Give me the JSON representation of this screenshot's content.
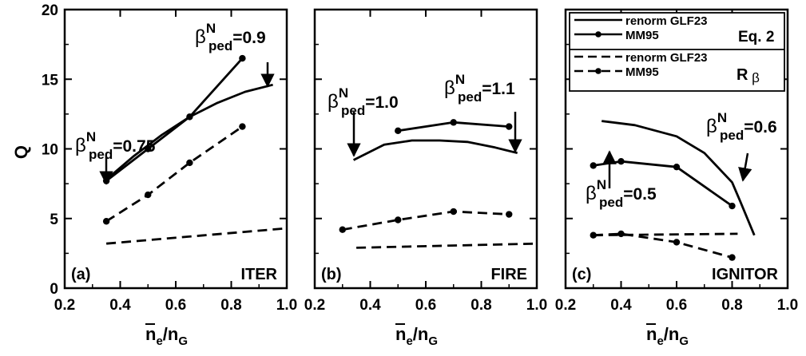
{
  "chart_data": [
    {
      "type": "line",
      "panel_label": "(a)",
      "device": "ITER",
      "xlabel": "n_e/n_G",
      "ylabel": "Q",
      "xlim": [
        0.2,
        1.0
      ],
      "ylim": [
        0,
        20
      ],
      "x_ticks": [
        "0.2",
        "0.4",
        "0.6",
        "0.8",
        "1.0"
      ],
      "y_ticks": [
        "0",
        "5",
        "10",
        "15",
        "20"
      ],
      "series": [
        {
          "name": "renorm GLF23",
          "method": "Eq. 2",
          "style": "solid",
          "markers": false,
          "x": [
            0.35,
            0.45,
            0.55,
            0.65,
            0.75,
            0.85,
            0.95
          ],
          "y": [
            7.8,
            9.5,
            11.0,
            12.3,
            13.3,
            14.1,
            14.6
          ]
        },
        {
          "name": "MM95",
          "method": "Eq. 2",
          "style": "solid",
          "markers": true,
          "x": [
            0.35,
            0.5,
            0.65,
            0.84
          ],
          "y": [
            7.7,
            10.0,
            12.3,
            16.5
          ]
        },
        {
          "name": "renorm GLF23",
          "method": "R",
          "style": "dashed",
          "markers": false,
          "x": [
            0.35,
            1.0
          ],
          "y": [
            3.2,
            4.3
          ]
        },
        {
          "name": "MM95",
          "method": "R",
          "style": "dashed",
          "markers": true,
          "x": [
            0.35,
            0.5,
            0.65,
            0.84
          ],
          "y": [
            4.8,
            6.7,
            9.0,
            11.6
          ]
        }
      ],
      "annotations": [
        {
          "base": "β",
          "sup": "N",
          "sub": "ped",
          "text": "=0.75",
          "arrow": "down"
        },
        {
          "base": "β",
          "sup": "N",
          "sub": "ped",
          "text": "=0.9",
          "arrow": "down"
        }
      ]
    },
    {
      "type": "line",
      "panel_label": "(b)",
      "device": "FIRE",
      "xlabel": "n_e/n_G",
      "xlim": [
        0.2,
        1.0
      ],
      "ylim": [
        0,
        20
      ],
      "x_ticks": [
        "0.2",
        "0.4",
        "0.6",
        "0.8",
        "1.0"
      ],
      "series": [
        {
          "name": "renorm GLF23",
          "method": "Eq. 2",
          "style": "solid",
          "markers": false,
          "x": [
            0.34,
            0.45,
            0.55,
            0.65,
            0.75,
            0.85,
            0.93
          ],
          "y": [
            9.2,
            10.3,
            10.6,
            10.6,
            10.5,
            10.1,
            9.7
          ]
        },
        {
          "name": "MM95",
          "method": "Eq. 2",
          "style": "solid",
          "markers": true,
          "x": [
            0.5,
            0.7,
            0.9
          ],
          "y": [
            11.3,
            11.9,
            11.6
          ]
        },
        {
          "name": "renorm GLF23",
          "method": "R",
          "style": "dashed",
          "markers": false,
          "x": [
            0.35,
            1.0
          ],
          "y": [
            2.9,
            3.2
          ]
        },
        {
          "name": "MM95",
          "method": "R",
          "style": "dashed",
          "markers": true,
          "x": [
            0.3,
            0.5,
            0.7,
            0.9
          ],
          "y": [
            4.2,
            4.9,
            5.5,
            5.3
          ]
        }
      ],
      "annotations": [
        {
          "base": "β",
          "sup": "N",
          "sub": "ped",
          "text": "=1.0",
          "arrow": "down"
        },
        {
          "base": "β",
          "sup": "N",
          "sub": "ped",
          "text": "=1.1",
          "arrow": "down"
        }
      ]
    },
    {
      "type": "line",
      "panel_label": "(c)",
      "device": "IGNITOR",
      "xlabel": "n_e/n_G",
      "xlim": [
        0.2,
        1.0
      ],
      "ylim": [
        0,
        20
      ],
      "x_ticks": [
        "0.2",
        "0.4",
        "0.6",
        "0.8",
        "1.0"
      ],
      "series": [
        {
          "name": "renorm GLF23",
          "method": "Eq. 2",
          "style": "solid",
          "markers": false,
          "x": [
            0.33,
            0.45,
            0.6,
            0.7,
            0.8,
            0.83,
            0.88
          ],
          "y": [
            12.0,
            11.7,
            10.9,
            9.7,
            7.6,
            6.2,
            3.8
          ]
        },
        {
          "name": "MM95",
          "method": "Eq. 2",
          "style": "solid",
          "markers": true,
          "x": [
            0.3,
            0.4,
            0.6,
            0.8
          ],
          "y": [
            8.8,
            9.1,
            8.7,
            5.9
          ]
        },
        {
          "name": "renorm GLF23",
          "method": "R",
          "style": "dashed",
          "markers": false,
          "x": [
            0.3,
            0.82
          ],
          "y": [
            3.8,
            3.9
          ]
        },
        {
          "name": "MM95",
          "method": "R",
          "style": "dashed",
          "markers": true,
          "x": [
            0.3,
            0.4,
            0.6,
            0.8
          ],
          "y": [
            3.8,
            3.9,
            3.3,
            2.2
          ]
        }
      ],
      "annotations": [
        {
          "base": "β",
          "sup": "N",
          "sub": "ped",
          "text": "=0.5",
          "arrow": "up"
        },
        {
          "base": "β",
          "sup": "N",
          "sub": "ped",
          "text": "=0.6",
          "arrow": "down"
        }
      ],
      "legend": {
        "placement": "top-right",
        "groups": [
          {
            "title": "Eq. 2",
            "entries": [
              {
                "label": "renorm GLF23",
                "style": "solid",
                "markers": false
              },
              {
                "label": "MM95",
                "style": "solid",
                "markers": true
              }
            ]
          },
          {
            "title": "R",
            "title_sub": "β",
            "entries": [
              {
                "label": "renorm GLF23",
                "style": "dashed",
                "markers": false
              },
              {
                "label": "MM95",
                "style": "dashed",
                "markers": true
              }
            ]
          }
        ]
      }
    }
  ]
}
